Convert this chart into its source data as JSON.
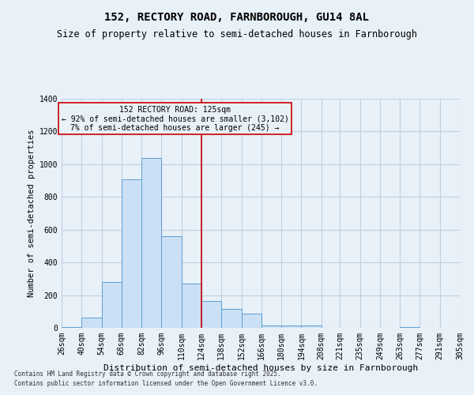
{
  "title1": "152, RECTORY ROAD, FARNBOROUGH, GU14 8AL",
  "title2": "Size of property relative to semi-detached houses in Farnborough",
  "xlabel": "Distribution of semi-detached houses by size in Farnborough",
  "ylabel": "Number of semi-detached properties",
  "footnote1": "Contains HM Land Registry data © Crown copyright and database right 2025.",
  "footnote2": "Contains public sector information licensed under the Open Government Licence v3.0.",
  "annotation_title": "152 RECTORY ROAD: 125sqm",
  "annotation_line1": "← 92% of semi-detached houses are smaller (3,102)",
  "annotation_line2": "7% of semi-detached houses are larger (245) →",
  "vline_x": 124,
  "bin_edges": [
    26,
    40,
    54,
    68,
    82,
    96,
    110,
    124,
    138,
    152,
    166,
    180,
    194,
    208,
    221,
    235,
    249,
    263,
    277,
    291,
    305
  ],
  "bar_heights": [
    5,
    65,
    280,
    910,
    1040,
    560,
    270,
    165,
    115,
    85,
    15,
    15,
    15,
    0,
    0,
    0,
    0,
    5,
    0,
    0
  ],
  "bar_facecolor": "#cce0f5",
  "bar_edgecolor": "#5a9fd4",
  "vline_color": "#cc0000",
  "bg_color": "#e8f0f8",
  "grid_color": "#c0cfe0",
  "annotation_box_color": "#cc0000",
  "ylim": [
    0,
    1400
  ],
  "yticks": [
    0,
    200,
    400,
    600,
    800,
    1000,
    1200,
    1400
  ],
  "title1_fontsize": 10,
  "title2_fontsize": 8.5,
  "xlabel_fontsize": 8,
  "ylabel_fontsize": 7.5,
  "tick_fontsize": 7,
  "footnote_fontsize": 5.5
}
